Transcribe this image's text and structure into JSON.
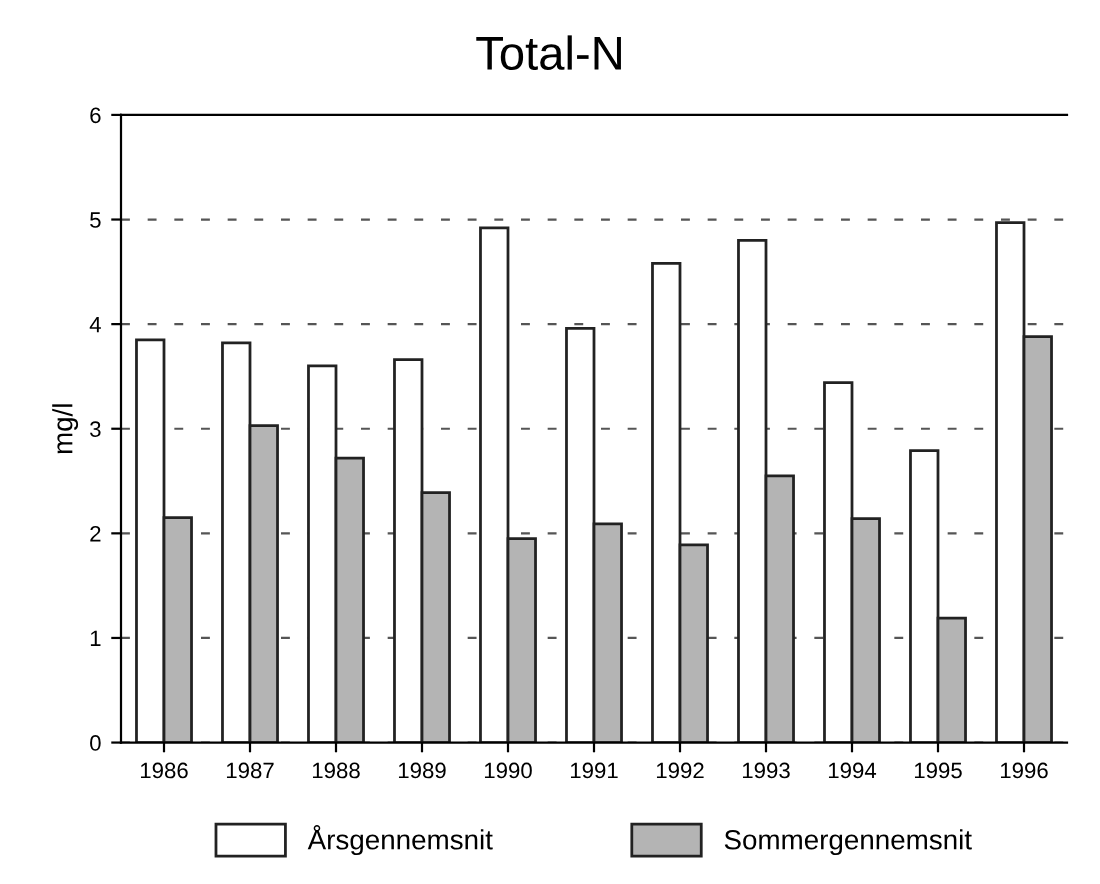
{
  "chart_data": {
    "type": "bar",
    "title": "Total-N",
    "ylabel": "mg/l",
    "categories": [
      "1986",
      "1987",
      "1988",
      "1989",
      "1990",
      "1991",
      "1992",
      "1993",
      "1994",
      "1995",
      "1996"
    ],
    "series": [
      {
        "name": "Årsgennemsnit",
        "color": "#ffffff",
        "values": [
          3.85,
          3.82,
          3.6,
          3.66,
          4.92,
          3.96,
          4.58,
          4.8,
          3.44,
          2.79,
          4.97
        ]
      },
      {
        "name": "Sommergennemsnit",
        "color": "#b4b4b4",
        "values": [
          2.15,
          3.03,
          2.72,
          2.39,
          1.95,
          2.09,
          1.89,
          2.55,
          2.14,
          1.19,
          3.88
        ]
      }
    ],
    "ylim": [
      0,
      6
    ],
    "yticks": [
      0,
      1,
      2,
      3,
      4,
      5,
      6
    ],
    "grid": "y",
    "legend": "bottom"
  }
}
